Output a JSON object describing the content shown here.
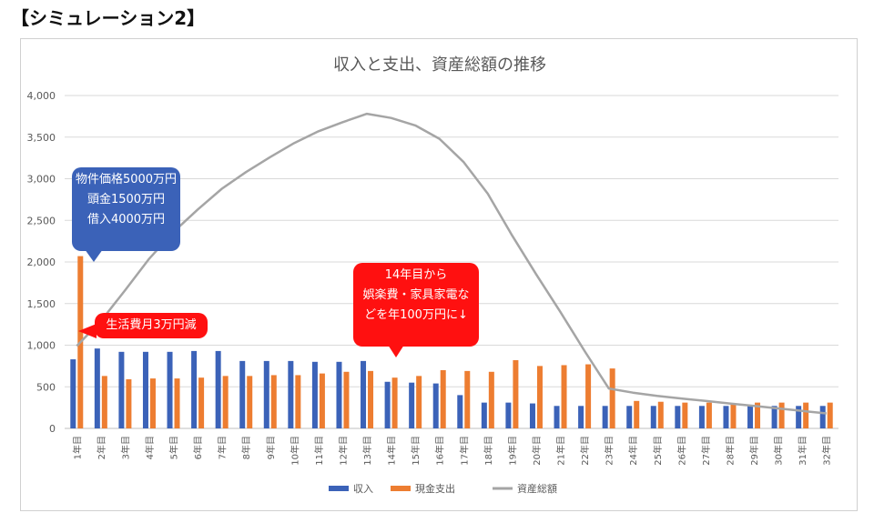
{
  "page_heading": "【シミュレーション2】",
  "annotations": {
    "property": [
      "物件価格5000万円",
      "頭金1500万円",
      "借入4000万円"
    ],
    "living": [
      "生活費月3万円減"
    ],
    "leisure": [
      "14年目から",
      "娯楽費・家具家電な",
      "どを年100万円に↓"
    ]
  },
  "chart_data": {
    "type": "bar",
    "title": "収入と支出、資産総額の推移",
    "xlabel": "",
    "ylabel": "",
    "ylim": [
      0,
      4000
    ],
    "yticks": [
      0,
      500,
      1000,
      1500,
      2000,
      2500,
      3000,
      3500,
      4000
    ],
    "ytick_labels": [
      "0",
      "500",
      "1,000",
      "1,500",
      "2,000",
      "2,500",
      "3,000",
      "3,500",
      "4,000"
    ],
    "grid": true,
    "legend_position": "bottom",
    "categories": [
      "1年目",
      "2年目",
      "3年目",
      "4年目",
      "5年目",
      "6年目",
      "7年目",
      "8年目",
      "9年目",
      "10年目",
      "11年目",
      "12年目",
      "13年目",
      "14年目",
      "15年目",
      "16年目",
      "17年目",
      "18年目",
      "19年目",
      "20年目",
      "21年目",
      "22年目",
      "23年目",
      "24年目",
      "25年目",
      "26年目",
      "27年目",
      "28年目",
      "29年目",
      "30年目",
      "31年目",
      "32年目"
    ],
    "series": [
      {
        "name": "収入",
        "kind": "bar",
        "color": "#3b62b8",
        "values": [
          830,
          960,
          920,
          920,
          920,
          930,
          930,
          810,
          810,
          810,
          800,
          800,
          810,
          560,
          550,
          540,
          400,
          310,
          310,
          300,
          270,
          270,
          270,
          270,
          270,
          270,
          270,
          270,
          270,
          270,
          270,
          270
        ]
      },
      {
        "name": "現金支出",
        "kind": "bar",
        "color": "#ed7d31",
        "values": [
          2070,
          630,
          590,
          600,
          600,
          610,
          630,
          630,
          640,
          640,
          660,
          680,
          690,
          610,
          630,
          700,
          690,
          680,
          820,
          750,
          760,
          770,
          720,
          330,
          320,
          310,
          310,
          300,
          310,
          310,
          310,
          310
        ]
      },
      {
        "name": "資産総額",
        "kind": "line",
        "color": "#a5a5a5",
        "values": [
          990,
          1290,
          1660,
          2040,
          2360,
          2630,
          2880,
          3080,
          3260,
          3430,
          3570,
          3680,
          3780,
          3730,
          3640,
          3480,
          3200,
          2820,
          2320,
          1850,
          1400,
          930,
          480,
          430,
          390,
          360,
          330,
          300,
          270,
          240,
          210,
          180
        ]
      }
    ]
  }
}
